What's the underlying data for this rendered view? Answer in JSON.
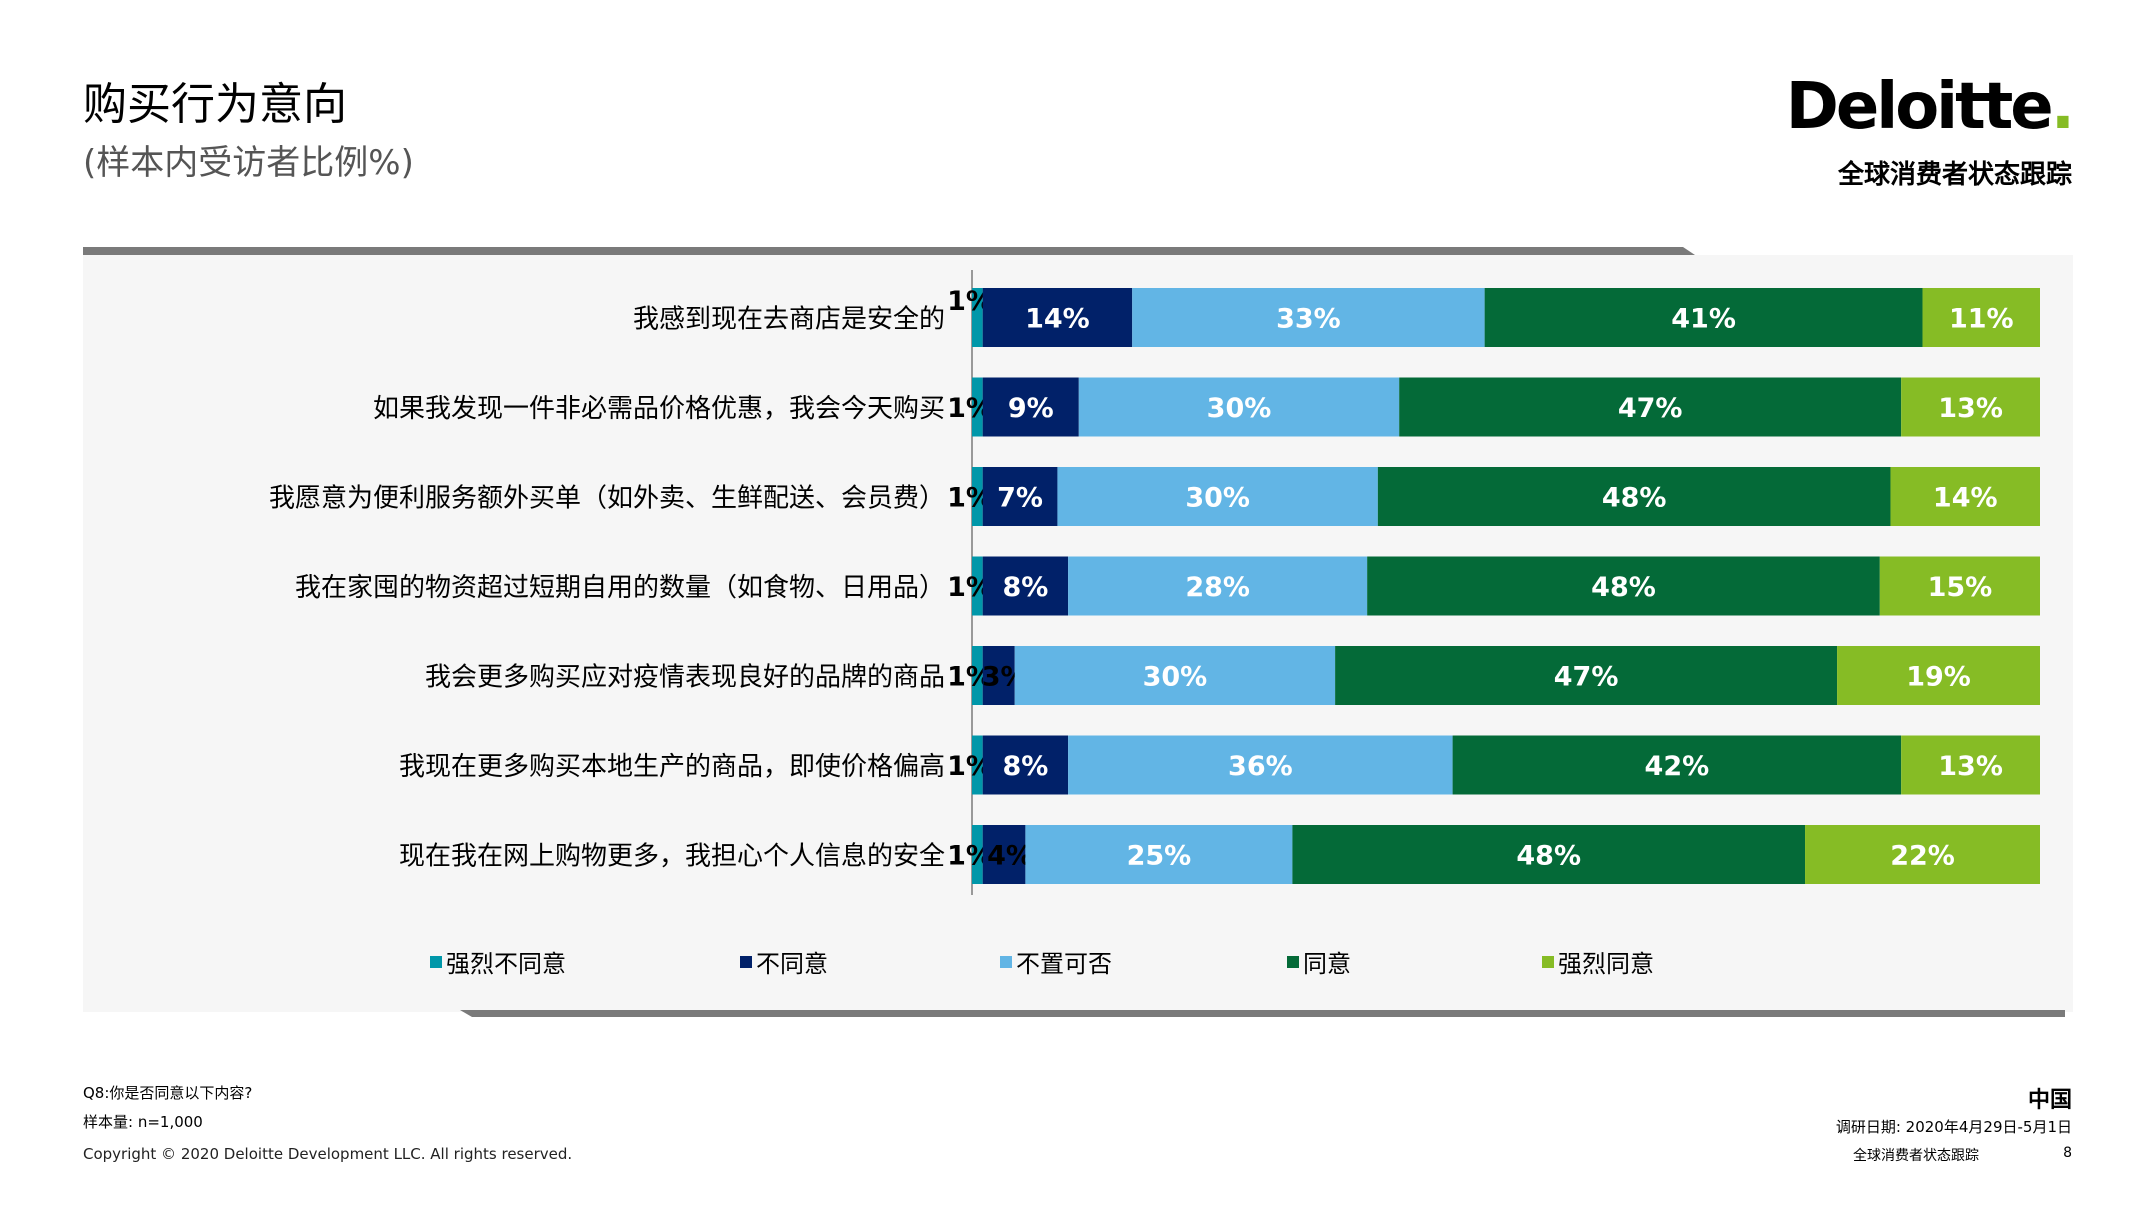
{
  "header": {
    "title": "购买行为意向",
    "subtitle": "(样本内受访者比例%)",
    "logo_text": "Deloitte",
    "logo_dot": ".",
    "tracker": "全球消费者状态跟踪"
  },
  "chart_data": {
    "type": "bar",
    "orientation": "horizontal",
    "stacked": true,
    "xlim": [
      0,
      100
    ],
    "categories": [
      "我感到现在去商店是安全的",
      "如果我发现一件非必需品价格优惠，我会今天购买",
      "我愿意为便利服务额外买单（如外卖、生鲜配送、会员费）",
      "我在家囤的物资超过短期自用的数量（如食物、日用品）",
      "我会更多购买应对疫情表现良好的品牌的商品",
      "我现在更多购买本地生产的商品，即使价格偏高",
      "现在我在网上购物更多，我担心个人信息的安全"
    ],
    "series": [
      {
        "name": "强烈不同意",
        "color": "#0097a9",
        "values": [
          1,
          1,
          1,
          1,
          1,
          1,
          1
        ],
        "labels": [
          "1%",
          "1%",
          "1%",
          "1%",
          "1%",
          "1%",
          "1%"
        ]
      },
      {
        "name": "不同意",
        "color": "#012169",
        "values": [
          14,
          9,
          7,
          8,
          3,
          8,
          4
        ],
        "labels": [
          "14%",
          "9%",
          "7%",
          "8%",
          "3%",
          "8%",
          "4%"
        ]
      },
      {
        "name": "不置可否",
        "color": "#62b5e5",
        "values": [
          33,
          30,
          30,
          28,
          30,
          36,
          25
        ],
        "labels": [
          "33%",
          "30%",
          "30%",
          "28%",
          "30%",
          "36%",
          "25%"
        ]
      },
      {
        "name": "同意",
        "color": "#046a38",
        "values": [
          41,
          47,
          48,
          48,
          47,
          42,
          48
        ],
        "labels": [
          "41%",
          "47%",
          "48%",
          "48%",
          "47%",
          "42%",
          "48%"
        ]
      },
      {
        "name": "强烈同意",
        "color": "#86bc25",
        "values": [
          11,
          13,
          14,
          15,
          19,
          13,
          22
        ],
        "labels": [
          "11%",
          "13%",
          "14%",
          "15%",
          "19%",
          "13%",
          "22%"
        ]
      }
    ],
    "legend_position": "bottom"
  },
  "footer": {
    "question": "Q8:你是否同意以下内容?",
    "sample": "样本量: n=1,000",
    "copyright": "Copyright © 2020 Deloitte Development LLC. All rights reserved.",
    "country": "中国",
    "date": "调研日期: 2020年4月29日-5月1日",
    "tracker": "全球消费者状态跟踪",
    "page": "8"
  }
}
